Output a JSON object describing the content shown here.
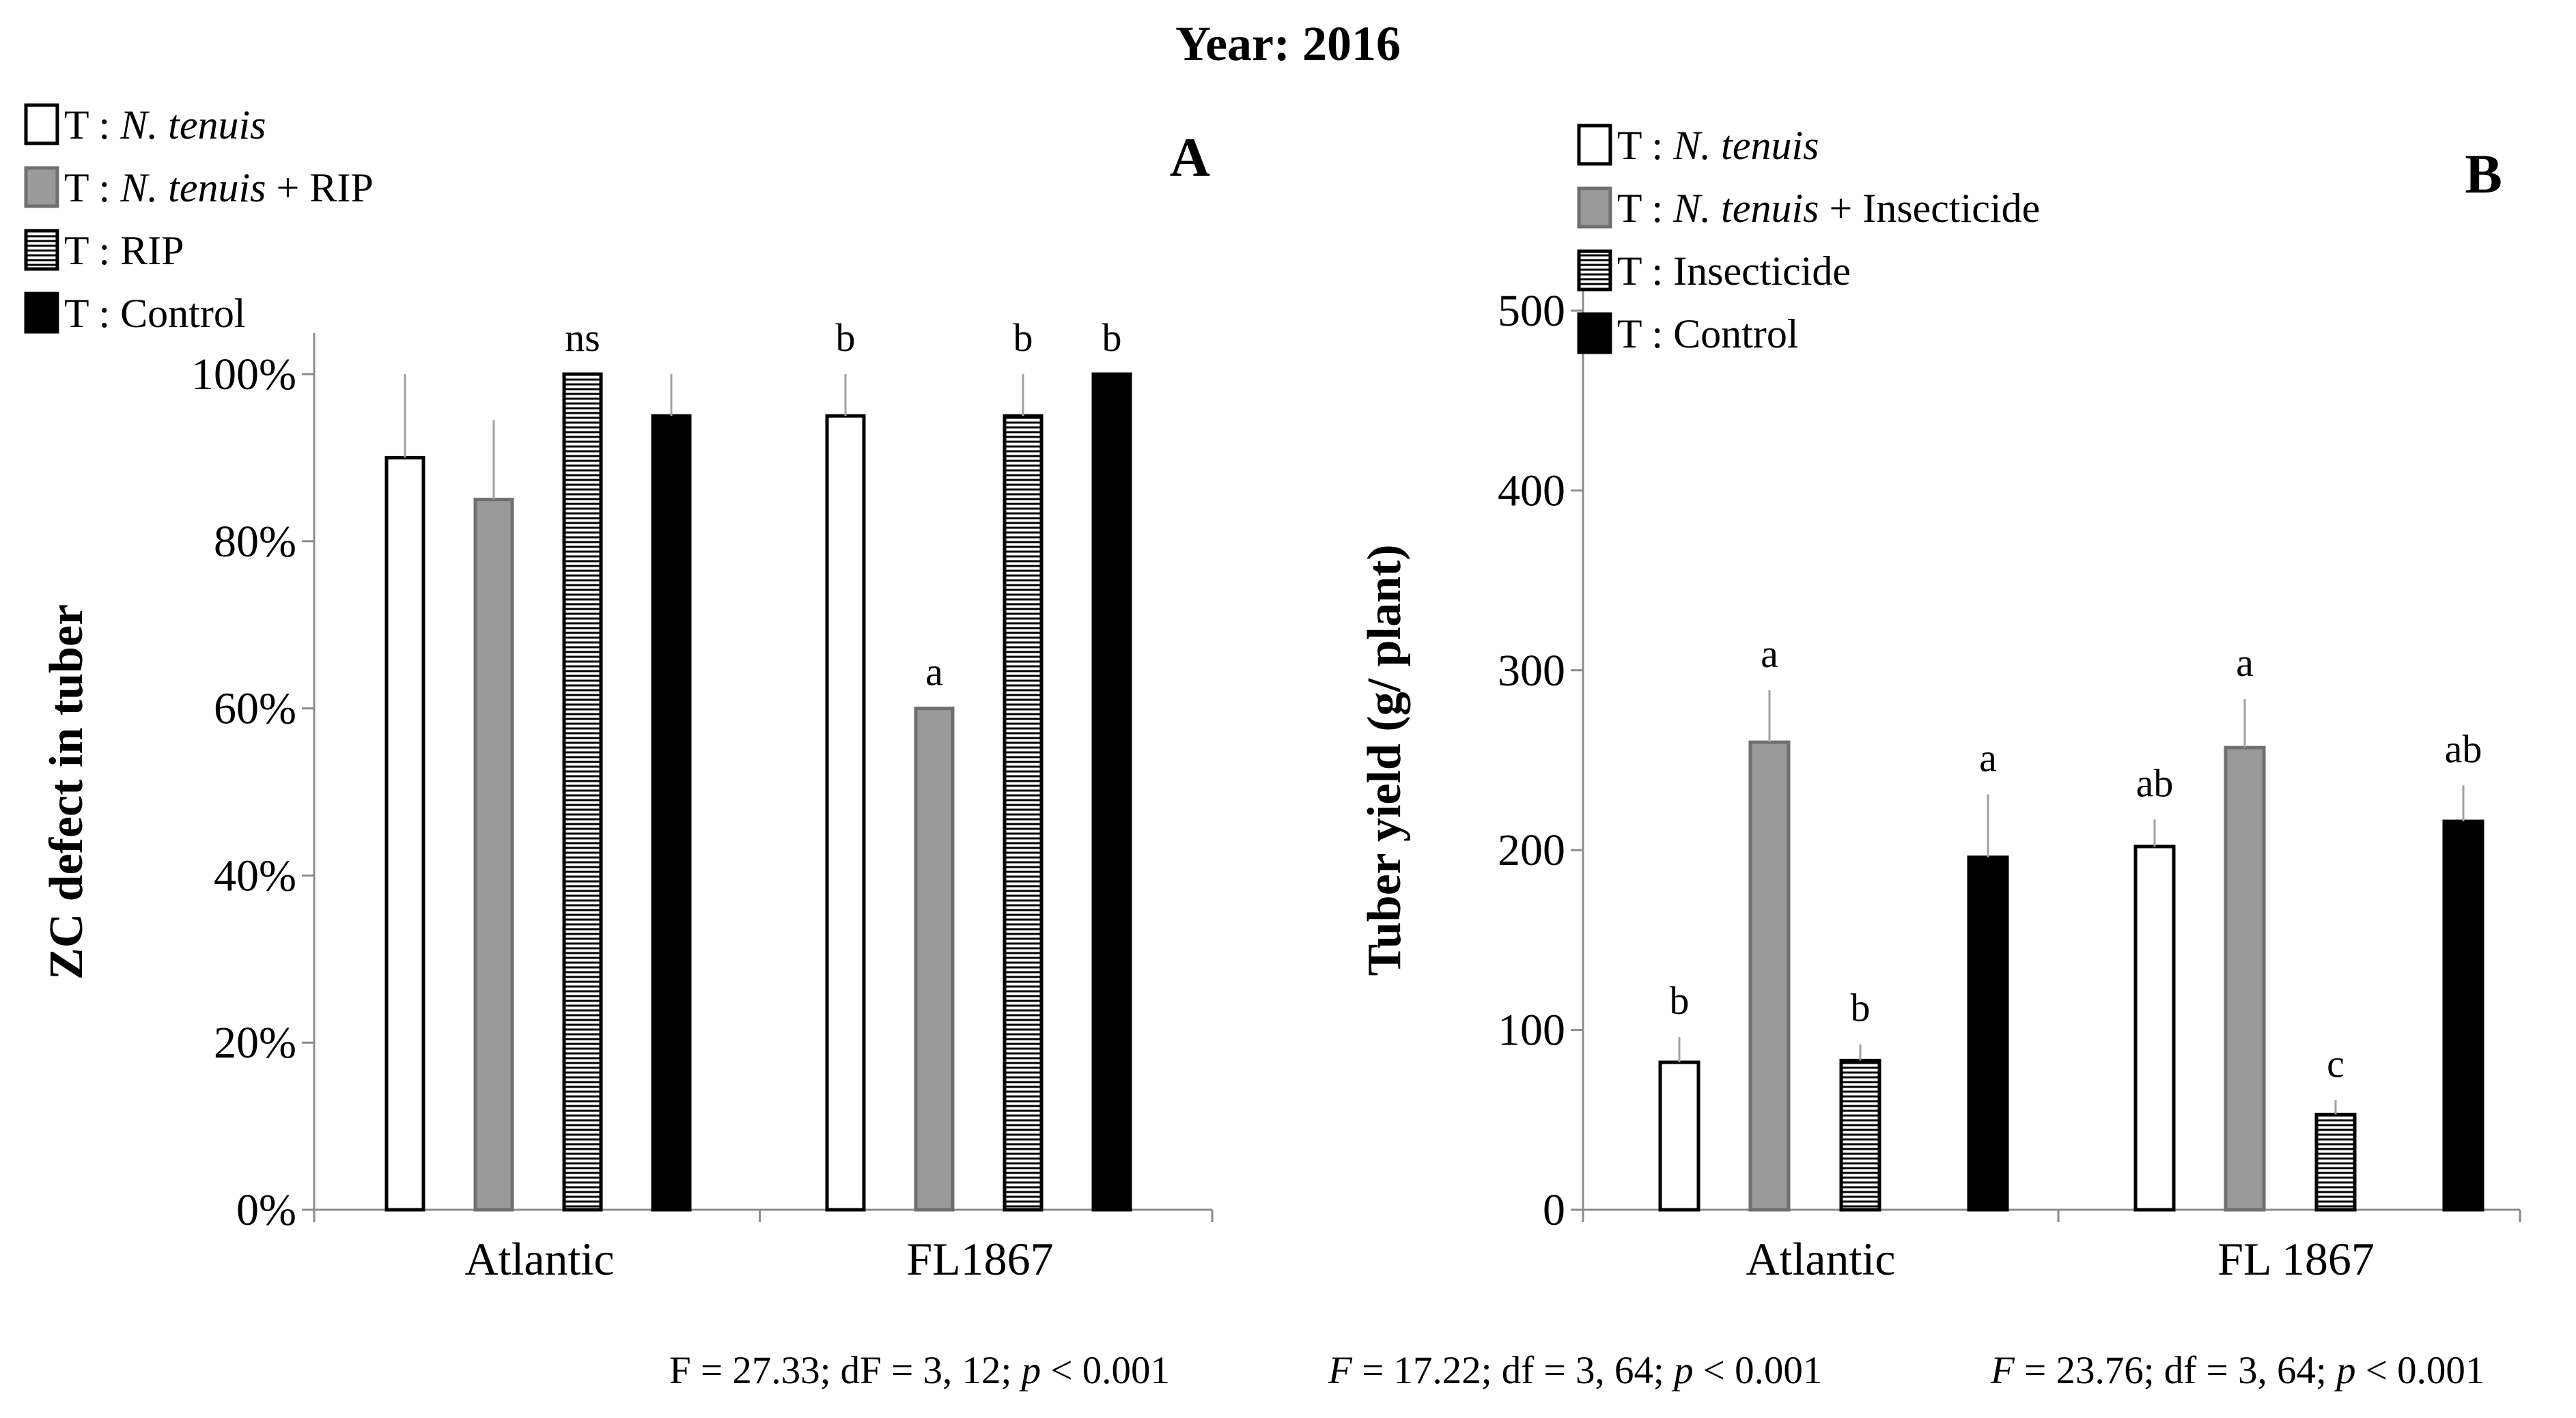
{
  "figure_title": "Year: 2016",
  "colors": {
    "tenuis": "#ffffff",
    "tenuis_plus": "#9a9a9a",
    "striped": "#ffffff",
    "control": "#000000",
    "axis": "#8c8c8c",
    "error_bar": "#a0a0a0"
  },
  "chart_data": [
    {
      "panel": "A",
      "type": "bar",
      "title": "",
      "xlabel": "",
      "ylabel": "ZC defect in tuber",
      "ylim": [
        0,
        100
      ],
      "yticks": [
        0,
        20,
        40,
        60,
        80,
        100
      ],
      "ytick_suffix": "%",
      "categories": [
        "Atlantic",
        "FL1867"
      ],
      "series": [
        {
          "key": "tenuis",
          "name": "T: N. tenuis",
          "pattern": "open",
          "legend": {
            "prefix": "T : ",
            "italic": "N. tenuis",
            "suffix": ""
          },
          "values": [
            90,
            95
          ],
          "errors": [
            10,
            5
          ],
          "labels": [
            "",
            "b"
          ]
        },
        {
          "key": "tenuis_plus",
          "name": "T: N. tenuis + RIP",
          "pattern": "gray",
          "legend": {
            "prefix": "T : ",
            "italic": "N. tenuis",
            "suffix": " + RIP"
          },
          "values": [
            85,
            60
          ],
          "errors": [
            9.5,
            0
          ],
          "labels": [
            "",
            "a"
          ]
        },
        {
          "key": "striped",
          "name": "T: RIP",
          "pattern": "striped",
          "legend": {
            "prefix": "T : ",
            "italic": "",
            "suffix": "RIP"
          },
          "values": [
            100,
            95
          ],
          "errors": [
            0,
            5
          ],
          "labels": [
            "ns",
            "b"
          ]
        },
        {
          "key": "control",
          "name": "T: Control",
          "pattern": "solid",
          "legend": {
            "prefix": "T : ",
            "italic": "",
            "suffix": "Control"
          },
          "values": [
            95,
            100
          ],
          "errors": [
            5,
            0
          ],
          "labels": [
            "",
            "b"
          ]
        }
      ]
    },
    {
      "panel": "B",
      "type": "bar",
      "title": "",
      "xlabel": "",
      "ylabel": "Tuber yield (g/ plant)",
      "ylim": [
        0,
        500
      ],
      "yticks": [
        0,
        100,
        200,
        300,
        400,
        500
      ],
      "ytick_suffix": "",
      "categories": [
        "Atlantic",
        "FL 1867"
      ],
      "series": [
        {
          "key": "tenuis",
          "name": "T: N. tenuis",
          "pattern": "open",
          "legend": {
            "prefix": "T : ",
            "italic": "N. tenuis",
            "suffix": ""
          },
          "values": [
            82,
            202
          ],
          "errors": [
            14,
            15
          ],
          "labels": [
            "b",
            "ab"
          ]
        },
        {
          "key": "tenuis_plus",
          "name": "T: N. tenuis + Insecticide",
          "pattern": "gray",
          "legend": {
            "prefix": "T : ",
            "italic": "N. tenuis",
            "suffix": " + Insecticide"
          },
          "values": [
            260,
            257
          ],
          "errors": [
            29,
            27
          ],
          "labels": [
            "a",
            "a"
          ]
        },
        {
          "key": "striped",
          "name": "T: Insecticide",
          "pattern": "striped",
          "legend": {
            "prefix": "T : ",
            "italic": "",
            "suffix": "Insecticide"
          },
          "values": [
            83,
            53
          ],
          "errors": [
            9,
            8
          ],
          "labels": [
            "b",
            "c"
          ]
        },
        {
          "key": "control",
          "name": "T: Control",
          "pattern": "solid",
          "legend": {
            "prefix": "T : ",
            "italic": "",
            "suffix": "Control"
          },
          "values": [
            196,
            216
          ],
          "errors": [
            35,
            20
          ],
          "labels": [
            "a",
            "ab"
          ]
        }
      ]
    }
  ],
  "stats": [
    {
      "pre": "F = 27.33; dF = 3, 12; ",
      "pvar": "p",
      "post": " < 0.001"
    },
    {
      "fvar": "F",
      "pre": " = 17.22; df = 3, 64; ",
      "pvar": "p",
      "post": " < 0.001"
    },
    {
      "fvar": "F",
      "pre": " = 23.76; df = 3, 64; ",
      "pvar": "p",
      "post": " < 0.001"
    }
  ]
}
